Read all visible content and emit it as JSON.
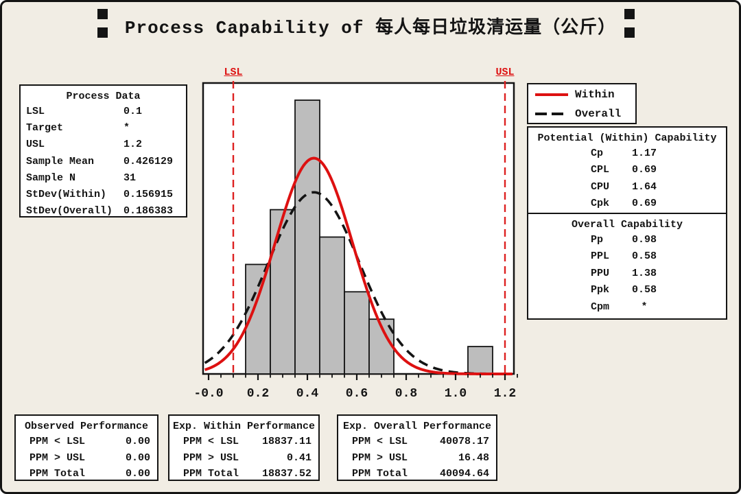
{
  "window": {
    "title": "Process Capability of 每人每日垃圾清运量（公斤）"
  },
  "process_data": {
    "title": "Process Data",
    "rows": [
      {
        "label": "LSL",
        "value": "0.1"
      },
      {
        "label": "Target",
        "value": "*"
      },
      {
        "label": "USL",
        "value": "1.2"
      },
      {
        "label": "Sample Mean",
        "value": "0.426129"
      },
      {
        "label": "Sample N",
        "value": "31"
      },
      {
        "label": "StDev(Within)",
        "value": "0.156915"
      },
      {
        "label": "StDev(Overall)",
        "value": "0.186383"
      }
    ]
  },
  "legend": {
    "items": [
      {
        "label": "Within",
        "color": "#dd1111",
        "style": "solid"
      },
      {
        "label": "Overall",
        "color": "#141414",
        "style": "dashed"
      }
    ]
  },
  "within_capability": {
    "title": "Potential (Within) Capability",
    "rows": [
      {
        "label": "Cp",
        "value": "1.17"
      },
      {
        "label": "CPL",
        "value": "0.69"
      },
      {
        "label": "CPU",
        "value": "1.64"
      },
      {
        "label": "Cpk",
        "value": "0.69"
      }
    ]
  },
  "overall_capability": {
    "title": "Overall Capability",
    "rows": [
      {
        "label": "Pp",
        "value": "0.98"
      },
      {
        "label": "PPL",
        "value": "0.58"
      },
      {
        "label": "PPU",
        "value": "1.38"
      },
      {
        "label": "Ppk",
        "value": "0.58"
      },
      {
        "label": "Cpm",
        "value": "*"
      }
    ]
  },
  "observed_performance": {
    "title": "Observed Performance",
    "rows": [
      {
        "label": "PPM < LSL",
        "value": "0.00"
      },
      {
        "label": "PPM > USL",
        "value": "0.00"
      },
      {
        "label": "PPM Total",
        "value": "0.00"
      }
    ]
  },
  "exp_within_performance": {
    "title": "Exp. Within Performance",
    "rows": [
      {
        "label": "PPM < LSL",
        "value": "18837.11"
      },
      {
        "label": "PPM > USL",
        "value": "0.41"
      },
      {
        "label": "PPM Total",
        "value": "18837.52"
      }
    ]
  },
  "exp_overall_performance": {
    "title": "Exp. Overall Performance",
    "rows": [
      {
        "label": "PPM < LSL",
        "value": "40078.17"
      },
      {
        "label": "PPM > USL",
        "value": "16.48"
      },
      {
        "label": "PPM Total",
        "value": "40094.64"
      }
    ]
  },
  "chart_data": {
    "type": "bar",
    "subtype": "capability-histogram",
    "title": "Process Capability of 每人每日垃圾清运量（公斤）",
    "xlabel": "",
    "ylabel": "",
    "bin_width": 0.1,
    "bin_centers": [
      0.2,
      0.3,
      0.4,
      0.5,
      0.6,
      0.7,
      1.1
    ],
    "counts": [
      4,
      6,
      10,
      5,
      3,
      2,
      1
    ],
    "sample_n": 31,
    "lsl": {
      "label": "LSL",
      "value": 0.1
    },
    "usl": {
      "label": "USL",
      "value": 1.2
    },
    "x_ticks": [
      {
        "label": "-0.0",
        "value": 0.0
      },
      {
        "label": "0.2",
        "value": 0.2
      },
      {
        "label": "0.4",
        "value": 0.4
      },
      {
        "label": "0.6",
        "value": 0.6
      },
      {
        "label": "0.8",
        "value": 0.8
      },
      {
        "label": "1.0",
        "value": 1.0
      },
      {
        "label": "1.2",
        "value": 1.2
      }
    ],
    "minor_tick_step": 0.05,
    "xlim": [
      -0.022,
      1.24
    ],
    "ylim_counts": [
      0,
      10.6
    ],
    "grid": false,
    "legend_position": "top-right",
    "curves": [
      {
        "name": "Within",
        "mean": 0.426129,
        "stdev": 0.156915,
        "color": "#dd1111",
        "dash": "solid"
      },
      {
        "name": "Overall",
        "mean": 0.426129,
        "stdev": 0.186383,
        "color": "#141414",
        "dash": "dashed"
      }
    ],
    "bar_fill": "#bdbdbd",
    "bar_stroke": "#141414",
    "spec_color": "#dd2020"
  }
}
